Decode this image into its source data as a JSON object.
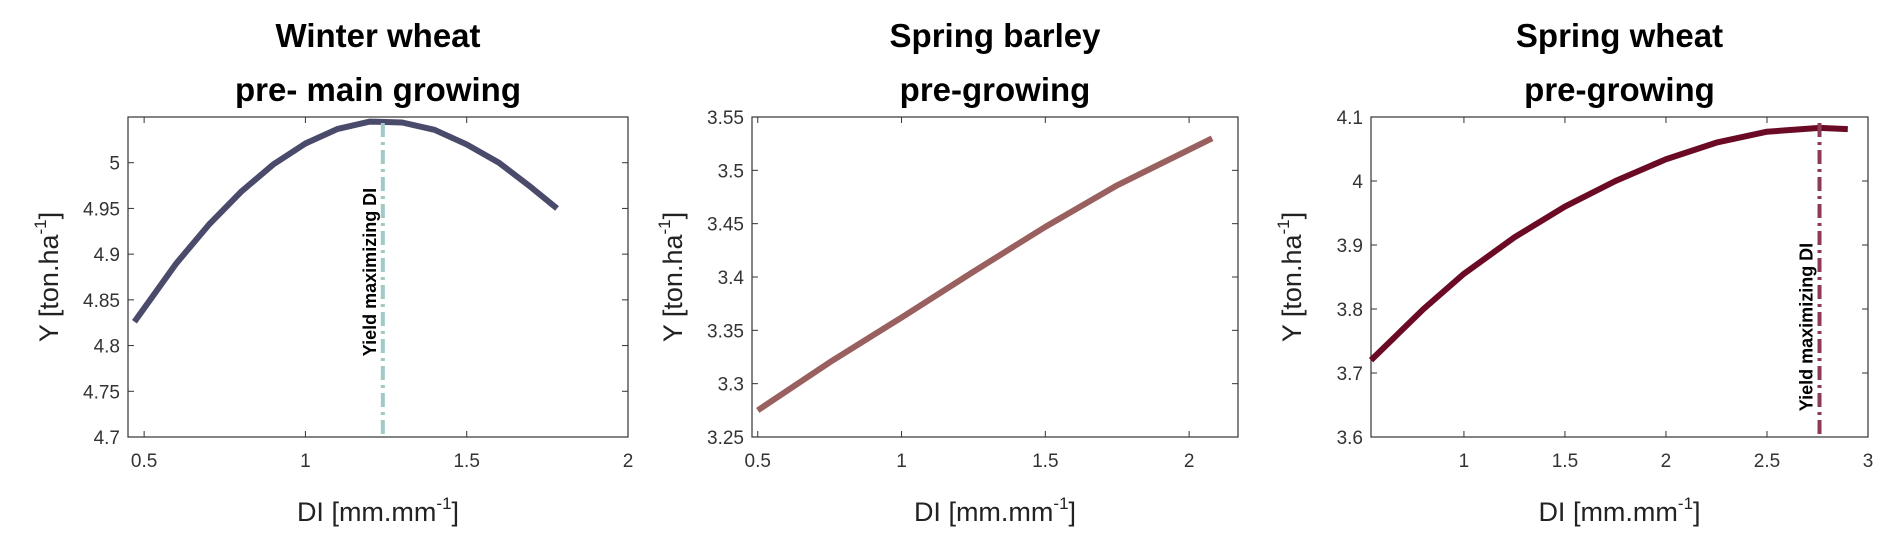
{
  "chart_data": [
    {
      "type": "line",
      "title": [
        "Winter wheat",
        "pre- main growing"
      ],
      "xlabel": [
        "DI [mm.mm",
        "-1",
        "]"
      ],
      "ylabel": [
        "Y [ton.ha",
        "-1",
        "]"
      ],
      "x": [
        0.47,
        0.6,
        0.7,
        0.8,
        0.9,
        1.0,
        1.1,
        1.2,
        1.3,
        1.4,
        1.5,
        1.6,
        1.7,
        1.78
      ],
      "values": [
        4.826,
        4.89,
        4.932,
        4.968,
        4.998,
        5.021,
        5.037,
        5.045,
        5.044,
        5.036,
        5.02,
        5.0,
        4.973,
        4.95
      ],
      "color": "#4a4a6b",
      "xlim": [
        0.45,
        2.0
      ],
      "xticks": [
        0.5,
        1,
        1.5,
        2
      ],
      "ylim": [
        4.7,
        5.05
      ],
      "yticks": [
        4.7,
        4.75,
        4.8,
        4.85,
        4.9,
        4.95,
        5
      ],
      "vline": {
        "x": 1.24,
        "color": "#9fcac6",
        "label": "Yield maximizing DI"
      }
    },
    {
      "type": "line",
      "title": [
        "Spring barley",
        "pre-growing"
      ],
      "xlabel": [
        "DI [mm.mm",
        "-1",
        "]"
      ],
      "ylabel": [
        "Y [ton.ha",
        "-1",
        "]"
      ],
      "x": [
        0.5,
        0.75,
        1.0,
        1.25,
        1.5,
        1.75,
        2.08
      ],
      "values": [
        3.275,
        3.32,
        3.362,
        3.405,
        3.447,
        3.486,
        3.53
      ],
      "color": "#9a5f5f",
      "xlim": [
        0.48,
        2.17
      ],
      "xticks": [
        0.5,
        1,
        1.5,
        2
      ],
      "ylim": [
        3.25,
        3.55
      ],
      "yticks": [
        3.25,
        3.3,
        3.35,
        3.4,
        3.45,
        3.5,
        3.55
      ]
    },
    {
      "type": "line",
      "title": [
        "Spring wheat",
        "pre-growing"
      ],
      "xlabel": [
        "DI [mm.mm",
        "-1",
        "]"
      ],
      "ylabel": [
        "Y [ton.ha",
        "-1",
        "]"
      ],
      "x": [
        0.54,
        0.8,
        1.0,
        1.25,
        1.5,
        1.75,
        2.0,
        2.25,
        2.5,
        2.76,
        2.9
      ],
      "values": [
        3.72,
        3.8,
        3.855,
        3.912,
        3.96,
        4.0,
        4.034,
        4.06,
        4.077,
        4.083,
        4.081
      ],
      "color": "#6b0a24",
      "xlim": [
        0.54,
        3.0
      ],
      "xticks": [
        1,
        1.5,
        2,
        2.5,
        3
      ],
      "ylim": [
        3.6,
        4.1
      ],
      "yticks": [
        3.6,
        3.7,
        3.8,
        3.9,
        4,
        4.1
      ],
      "vline": {
        "x": 2.76,
        "color": "#8c3a58",
        "label": "Yield maximizing DI"
      }
    }
  ]
}
